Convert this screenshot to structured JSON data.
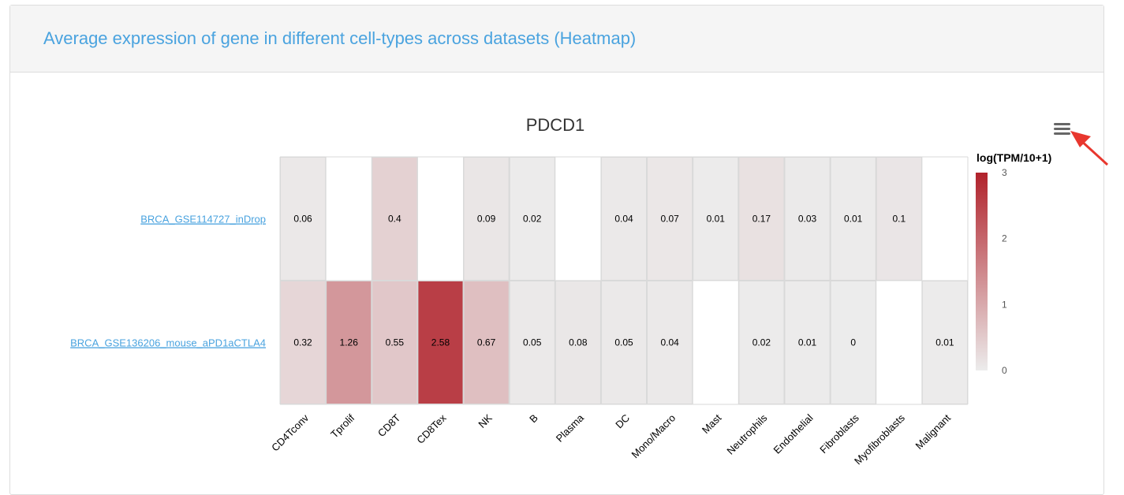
{
  "panel": {
    "title": "Average expression of gene in different cell-types across datasets (Heatmap)"
  },
  "menu": {
    "icon": "hamburger-menu-icon"
  },
  "annotation": {
    "icon": "red-arrow-icon",
    "color": "#e8372e"
  },
  "chart_data": {
    "type": "heatmap",
    "title": "PDCD1",
    "colorbar_title": "log(TPM/10+1)",
    "colorbar_range": [
      0,
      3
    ],
    "colorbar_ticks": [
      "0",
      "1",
      "2",
      "3"
    ],
    "colorscale": [
      "#ececec",
      "#b1222b"
    ],
    "rows": [
      "BRCA_GSE114727_inDrop",
      "BRCA_GSE136206_mouse_aPD1aCTLA4"
    ],
    "columns": [
      "CD4Tconv",
      "Tprolif",
      "CD8T",
      "CD8Tex",
      "NK",
      "B",
      "Plasma",
      "DC",
      "Mono/Macro",
      "Mast",
      "Neutrophils",
      "Endothelial",
      "Fibroblasts",
      "Myofibroblasts",
      "Malignant"
    ],
    "values": [
      [
        0.06,
        null,
        0.4,
        null,
        0.09,
        0.02,
        null,
        0.04,
        0.07,
        0.01,
        0.17,
        0.03,
        0.01,
        0.1,
        null
      ],
      [
        0.32,
        1.26,
        0.55,
        2.58,
        0.67,
        0.05,
        0.08,
        0.05,
        0.04,
        null,
        0.02,
        0.01,
        0,
        null,
        0.01
      ]
    ],
    "grid": true
  }
}
